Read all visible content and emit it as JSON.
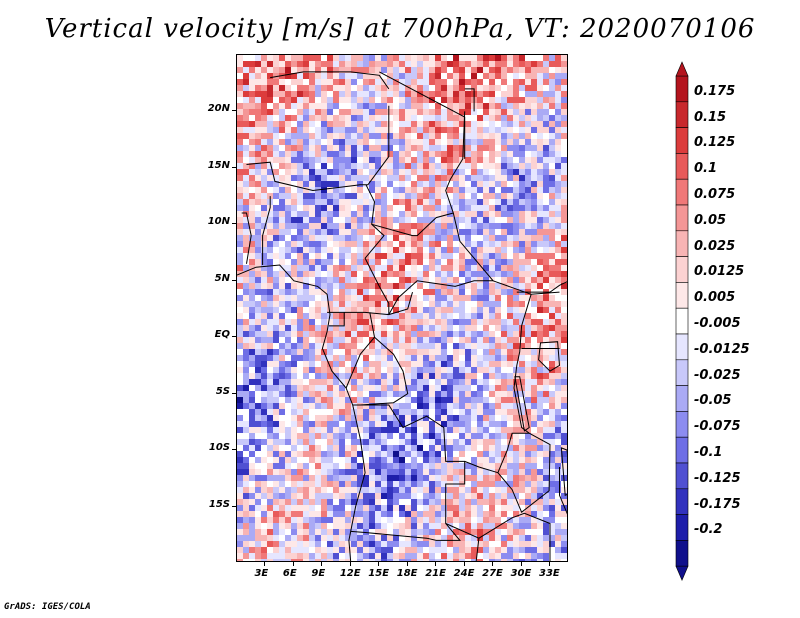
{
  "title": "Vertical velocity [m/s] at 700hPa, VT: 2020070106",
  "credit": "GrADS: IGES/COLA",
  "map": {
    "region": "Central Africa",
    "lat_labels": [
      "20N",
      "15N",
      "10N",
      "5N",
      "EQ",
      "5S",
      "10S",
      "15S"
    ],
    "lat_values": [
      20,
      15,
      10,
      5,
      0,
      -5,
      -10,
      -15
    ],
    "lon_labels": [
      "3E",
      "6E",
      "9E",
      "12E",
      "15E",
      "18E",
      "21E",
      "24E",
      "27E",
      "30E",
      "33E"
    ],
    "lon_values": [
      3,
      6,
      9,
      12,
      15,
      18,
      21,
      24,
      27,
      30,
      33
    ],
    "lon_range": [
      0,
      35
    ],
    "lat_range": [
      -20,
      25
    ]
  },
  "colorbar": {
    "labels": [
      "0.175",
      "0.15",
      "0.125",
      "0.1",
      "0.075",
      "0.05",
      "0.025",
      "0.0125",
      "0.005",
      "-0.005",
      "-0.0125",
      "-0.025",
      "-0.05",
      "-0.075",
      "-0.1",
      "-0.125",
      "-0.175",
      "-0.2"
    ],
    "colors": [
      "#b4141e",
      "#c8282d",
      "#dc3c3c",
      "#e85a5a",
      "#f07878",
      "#f49696",
      "#f8b4b4",
      "#fcd2d2",
      "#fee8e8",
      "#ffffff",
      "#e6e6ff",
      "#c8c8fa",
      "#aaaaf5",
      "#8c8cf0",
      "#6e6ee6",
      "#5050d2",
      "#3232be",
      "#1e1eaa",
      "#10108c"
    ]
  }
}
